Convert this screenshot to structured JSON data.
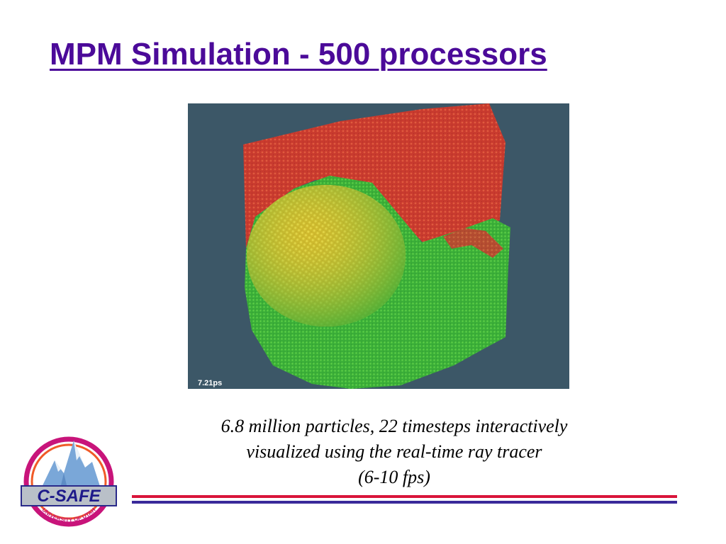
{
  "slide": {
    "title": "MPM Simulation - 500 processors",
    "caption_lines": [
      "6.8 million particles, 22 timesteps interactively",
      "visualized using the real-time ray tracer",
      "(6-10 fps)"
    ]
  },
  "figure": {
    "time_label": "7.21ps"
  },
  "logo": {
    "name": "C-SAFE",
    "subtitle": "UNIVERSITY OF UTAH"
  },
  "colors": {
    "title": "#4b0a99",
    "rule_red": "#d9143a",
    "rule_blue": "#3a2a9a",
    "image_background": "#3c5767",
    "particles_red": "#c83a2e",
    "particles_yellow": "#d6c22a",
    "particles_green": "#3cb43c"
  }
}
